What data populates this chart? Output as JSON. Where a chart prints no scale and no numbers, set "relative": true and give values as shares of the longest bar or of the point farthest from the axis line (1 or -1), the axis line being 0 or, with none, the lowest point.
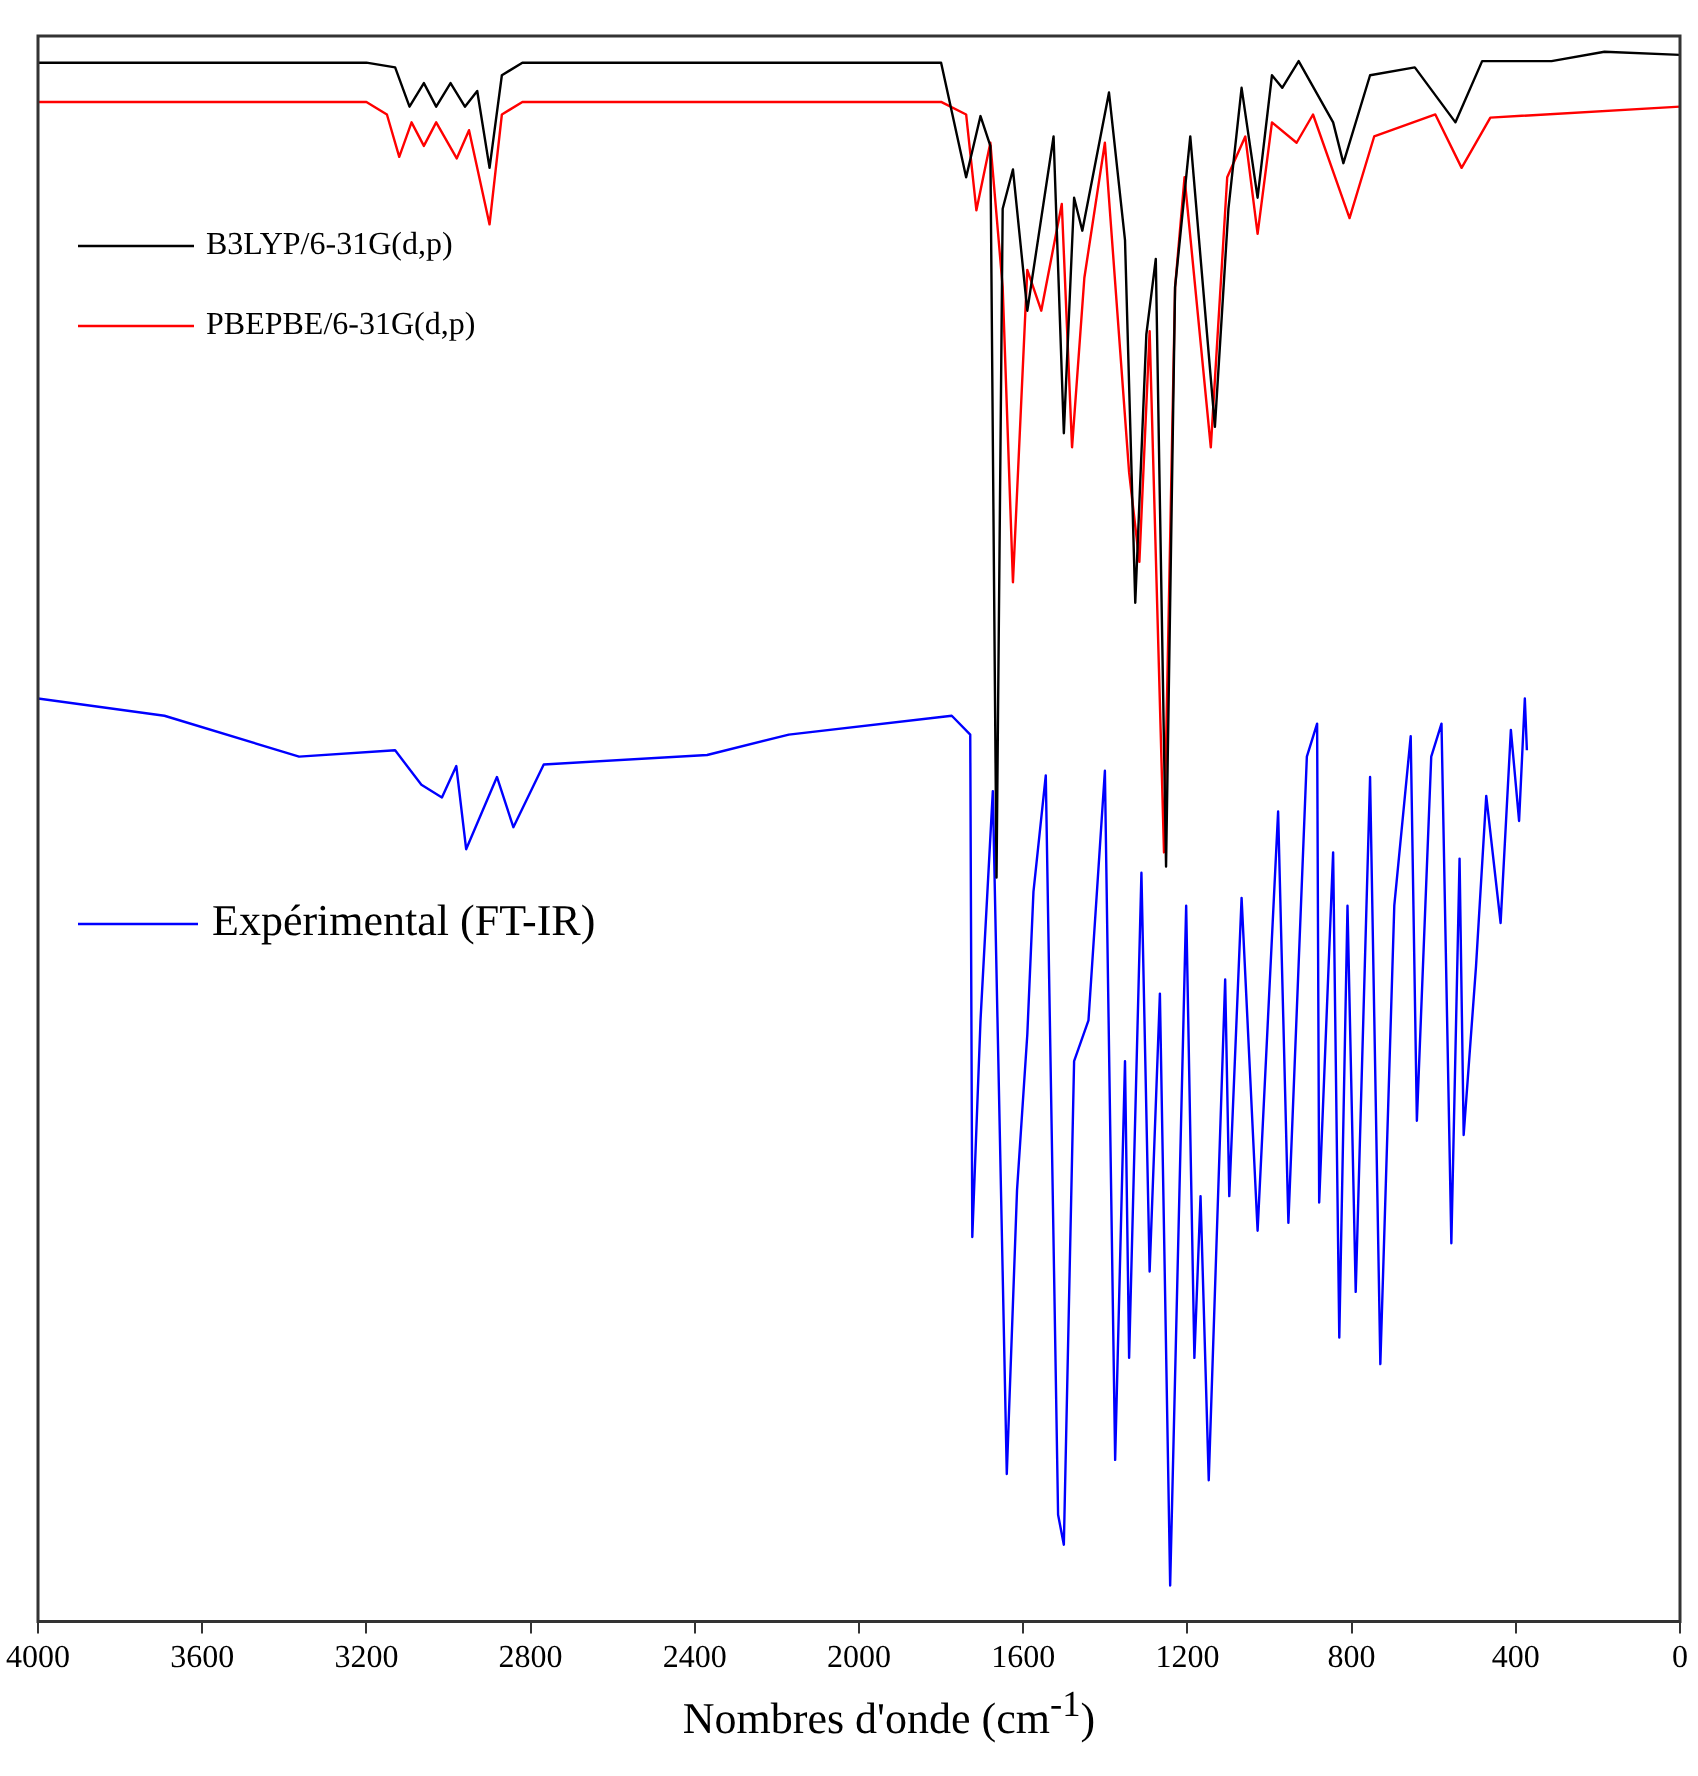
{
  "chart_data": {
    "type": "line",
    "relative": true,
    "xlabel": "Nombres d'onde (cm$^{-1}$)",
    "xlim": [
      4000,
      0
    ],
    "xticks": [
      4000,
      3600,
      3200,
      2800,
      2400,
      2000,
      1600,
      1200,
      800,
      400,
      0
    ],
    "legend": "top left",
    "marker": "none",
    "line_style": "solid",
    "series": [
      {
        "name": "B3LYP/6-31G(d,p)",
        "color": "#000000",
        "x": [
          4000,
          3200,
          3130,
          3095,
          3060,
          3030,
          2995,
          2960,
          2930,
          2900,
          2870,
          2820,
          1800,
          1739,
          1704,
          1680,
          1665,
          1650,
          1625,
          1590,
          1526,
          1501,
          1476,
          1456,
          1391,
          1352,
          1327,
          1300,
          1277,
          1252,
          1230,
          1193,
          1133,
          1100,
          1068,
          1029,
          994,
          969,
          929,
          845,
          820,
          755,
          646,
          547,
          482,
          313,
          184,
          0
        ],
        "values": [
          0.993,
          0.993,
          0.99,
          0.965,
          0.98,
          0.965,
          0.98,
          0.965,
          0.975,
          0.926,
          0.985,
          0.993,
          0.993,
          0.92,
          0.959,
          0.94,
          0.474,
          0.9,
          0.925,
          0.835,
          0.946,
          0.757,
          0.907,
          0.886,
          0.974,
          0.88,
          0.649,
          0.82,
          0.868,
          0.481,
          0.85,
          0.946,
          0.761,
          0.9,
          0.977,
          0.907,
          0.985,
          0.977,
          0.994,
          0.955,
          0.929,
          0.985,
          0.99,
          0.955,
          0.994,
          0.994,
          1.0,
          0.998
        ]
      },
      {
        "name": "PBEPBE/6-31G(d,p)",
        "color": "#ff0000",
        "x": [
          4000,
          3200,
          3150,
          3120,
          3090,
          3060,
          3030,
          2980,
          2950,
          2900,
          2870,
          2820,
          1800,
          1739,
          1714,
          1680,
          1650,
          1625,
          1590,
          1556,
          1506,
          1481,
          1451,
          1401,
          1342,
          1317,
          1292,
          1257,
          1230,
          1207,
          1143,
          1103,
          1059,
          1029,
          994,
          934,
          894,
          805,
          745,
          596,
          532,
          462,
          0
        ],
        "values": [
          0.968,
          0.968,
          0.96,
          0.933,
          0.955,
          0.94,
          0.955,
          0.932,
          0.95,
          0.89,
          0.96,
          0.968,
          0.968,
          0.96,
          0.899,
          0.942,
          0.85,
          0.662,
          0.861,
          0.835,
          0.903,
          0.748,
          0.856,
          0.942,
          0.732,
          0.675,
          0.822,
          0.49,
          0.85,
          0.92,
          0.748,
          0.92,
          0.946,
          0.884,
          0.955,
          0.942,
          0.96,
          0.894,
          0.946,
          0.96,
          0.926,
          0.958,
          0.965
        ]
      },
      {
        "name": "Expérimental (FT-IR)",
        "color": "#0000ff",
        "x": [
          4000,
          3692,
          3364,
          3130,
          3066,
          3016,
          2981,
          2957,
          2882,
          2842,
          2768,
          2370,
          2171,
          1774,
          1729,
          1724,
          1704,
          1674,
          1640,
          1615,
          1590,
          1575,
          1545,
          1515,
          1501,
          1476,
          1441,
          1401,
          1376,
          1352,
          1342,
          1312,
          1292,
          1267,
          1242,
          1203,
          1183,
          1168,
          1148,
          1108,
          1098,
          1068,
          1029,
          979,
          954,
          909,
          884,
          879,
          845,
          830,
          810,
          790,
          755,
          730,
          696,
          656,
          641,
          606,
          581,
          557,
          537,
          527,
          497,
          472,
          437,
          412,
          392,
          378,
          373
        ],
        "values": [
          0.588,
          0.577,
          0.551,
          0.555,
          0.533,
          0.525,
          0.545,
          0.492,
          0.538,
          0.506,
          0.546,
          0.552,
          0.565,
          0.577,
          0.565,
          0.245,
          0.383,
          0.529,
          0.094,
          0.275,
          0.374,
          0.465,
          0.539,
          0.068,
          0.049,
          0.357,
          0.383,
          0.542,
          0.103,
          0.357,
          0.168,
          0.477,
          0.223,
          0.4,
          0.023,
          0.456,
          0.168,
          0.271,
          0.09,
          0.409,
          0.271,
          0.461,
          0.249,
          0.516,
          0.254,
          0.551,
          0.572,
          0.267,
          0.49,
          0.181,
          0.456,
          0.21,
          0.538,
          0.164,
          0.456,
          0.564,
          0.319,
          0.551,
          0.572,
          0.241,
          0.486,
          0.31,
          0.417,
          0.526,
          0.445,
          0.568,
          0.51,
          0.588,
          0.555
        ]
      }
    ]
  }
}
